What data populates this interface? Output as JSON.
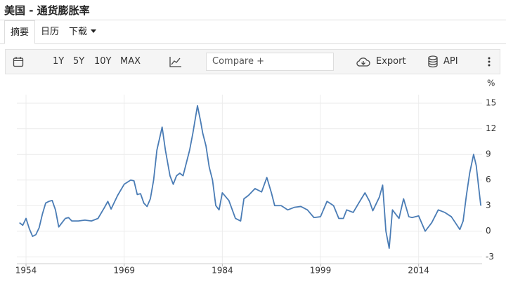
{
  "header": {
    "title": "美国 - 通货膨胀率"
  },
  "tabs": [
    "摘要",
    "日历",
    "下载"
  ],
  "toolbar": {
    "ranges": [
      "1Y",
      "5Y",
      "10Y",
      "MAX"
    ],
    "compare": "Compare +",
    "export": "Export",
    "api": "API"
  },
  "chart_data": {
    "type": "line",
    "y_unit": "%",
    "color": "#4a7cb5",
    "grid": true,
    "x": [
      1953.0,
      1953.5,
      1954.0,
      1954.5,
      1955.0,
      1955.5,
      1956.0,
      1956.5,
      1957.0,
      1957.5,
      1958.0,
      1958.5,
      1959.0,
      1959.5,
      1960.0,
      1960.5,
      1961.0,
      1962.0,
      1963.0,
      1964.0,
      1965.0,
      1966.0,
      1966.5,
      1967.0,
      1968.0,
      1969.0,
      1970.0,
      1970.5,
      1971.0,
      1971.5,
      1972.0,
      1972.5,
      1973.0,
      1973.5,
      1974.0,
      1974.8,
      1975.3,
      1976.0,
      1976.5,
      1977.0,
      1977.5,
      1978.0,
      1978.5,
      1979.0,
      1979.5,
      1980.2,
      1980.7,
      1981.0,
      1981.5,
      1982.0,
      1982.5,
      1983.0,
      1983.5,
      1984.0,
      1985.0,
      1986.0,
      1986.8,
      1987.3,
      1988.0,
      1989.0,
      1990.0,
      1990.8,
      1991.5,
      1992.0,
      1993.0,
      1994.0,
      1995.0,
      1996.0,
      1997.0,
      1998.0,
      1999.0,
      2000.0,
      2001.0,
      2001.8,
      2002.5,
      2003.0,
      2004.0,
      2005.0,
      2005.8,
      2006.5,
      2007.0,
      2008.0,
      2008.5,
      2009.0,
      2009.5,
      2010.0,
      2011.0,
      2011.7,
      2012.5,
      2013.0,
      2014.0,
      2015.0,
      2016.0,
      2017.0,
      2018.0,
      2019.0,
      2020.3,
      2020.8,
      2021.3,
      2021.8,
      2022.4,
      2022.8,
      2023.2,
      2023.5
    ],
    "values": [
      1,
      0.7,
      1.5,
      0.3,
      -0.6,
      -0.4,
      0.4,
      2,
      3.3,
      3.5,
      3.6,
      2.5,
      0.5,
      1,
      1.5,
      1.6,
      1.2,
      1.2,
      1.3,
      1.2,
      1.5,
      2.8,
      3.5,
      2.6,
      4.2,
      5.5,
      6,
      5.9,
      4.3,
      4.4,
      3.3,
      2.9,
      3.8,
      6,
      9.5,
      12.2,
      9.5,
      6.5,
      5.5,
      6.5,
      6.8,
      6.5,
      8,
      9.5,
      11.5,
      14.7,
      12.8,
      11.5,
      10,
      7.5,
      6,
      3,
      2.5,
      4.5,
      3.6,
      1.5,
      1.2,
      3.8,
      4.2,
      5,
      4.6,
      6.3,
      4.5,
      3,
      3,
      2.5,
      2.8,
      2.9,
      2.5,
      1.6,
      1.7,
      3.5,
      3,
      1.5,
      1.5,
      2.5,
      2.2,
      3.5,
      4.5,
      3.5,
      2.4,
      4,
      5.4,
      0,
      -2,
      2.5,
      1.5,
      3.8,
      1.7,
      1.6,
      1.8,
      0,
      1,
      2.5,
      2.2,
      1.7,
      0.2,
      1.2,
      4.2,
      6.8,
      9,
      7.7,
      5,
      3
    ],
    "xlim": [
      1952.6,
      2023.7
    ],
    "xticks": [
      1954,
      1969,
      1984,
      1999,
      2014
    ],
    "ylim": [
      -3.8,
      16
    ],
    "yticks": [
      -3,
      0,
      3,
      6,
      9,
      12,
      15
    ]
  }
}
